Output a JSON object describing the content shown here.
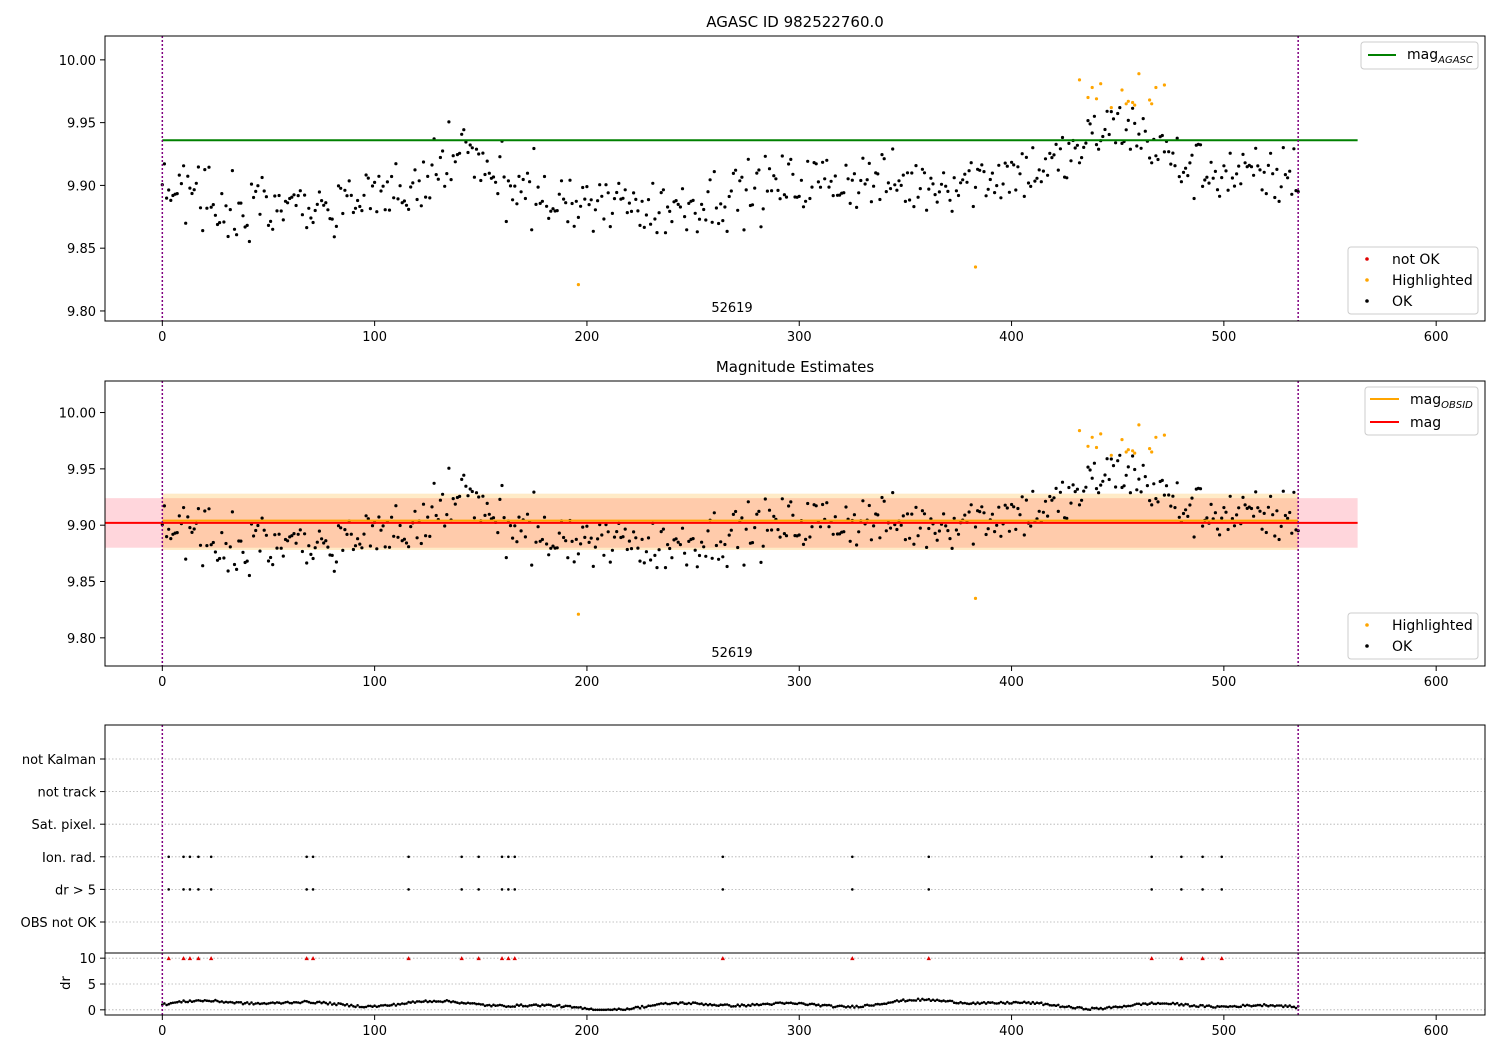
{
  "chart_data": [
    {
      "type": "scatter",
      "title": "AGASC ID 982522760.0",
      "xlim": [
        -27,
        623
      ],
      "ylim": [
        9.792,
        10.019
      ],
      "x_ticks": [
        0,
        100,
        200,
        300,
        400,
        500,
        600
      ],
      "y_ticks": [
        9.8,
        9.85,
        9.9,
        9.95,
        10.0
      ],
      "y_tick_labels": [
        "9.80",
        "9.85",
        "9.90",
        "9.95",
        "10.00"
      ],
      "obsid_label": {
        "text": "52619",
        "x": 267
      },
      "obs_boundaries": [
        0,
        535
      ],
      "lines": [
        {
          "name": "mag",
          "subscript": "AGASC",
          "y": 9.936,
          "x_range": [
            0,
            563
          ],
          "color": "#008000"
        }
      ],
      "highlighted_points": [
        [
          196,
          9.821
        ],
        [
          383,
          9.835
        ],
        [
          432,
          9.984
        ],
        [
          436,
          9.97
        ],
        [
          438,
          9.978
        ],
        [
          440,
          9.969
        ],
        [
          442,
          9.981
        ],
        [
          447,
          9.962
        ],
        [
          452,
          9.976
        ],
        [
          454,
          9.965
        ],
        [
          455,
          9.967
        ],
        [
          457,
          9.966
        ],
        [
          458,
          9.964
        ],
        [
          460,
          9.989
        ],
        [
          465,
          9.968
        ],
        [
          466,
          9.965
        ],
        [
          468,
          9.978
        ],
        [
          472,
          9.98
        ]
      ],
      "legends": [
        {
          "position": "top-right",
          "items": [
            {
              "label": "mag",
              "sub": "AGASC",
              "kind": "line",
              "color": "#008000"
            }
          ]
        },
        {
          "position": "bottom-right",
          "items": [
            {
              "label": "not OK",
              "kind": "dot",
              "color": "#e00000"
            },
            {
              "label": "Highlighted",
              "kind": "dot",
              "color": "#ffa500"
            },
            {
              "label": "OK",
              "kind": "dot",
              "color": "#000000"
            }
          ]
        }
      ]
    },
    {
      "type": "scatter",
      "title": "Magnitude Estimates",
      "xlim": [
        -27,
        623
      ],
      "ylim": [
        9.775,
        10.028
      ],
      "x_ticks": [
        0,
        100,
        200,
        300,
        400,
        500,
        600
      ],
      "y_ticks": [
        9.8,
        9.85,
        9.9,
        9.95,
        10.0
      ],
      "y_tick_labels": [
        "9.80",
        "9.85",
        "9.90",
        "9.95",
        "10.00"
      ],
      "obsid_label": {
        "text": "52619",
        "x": 267
      },
      "obs_boundaries": [
        0,
        535
      ],
      "lines": [
        {
          "name": "mag",
          "subscript": "OBSID",
          "y": 9.904,
          "x_range": [
            0,
            535
          ],
          "color": "#ffa500"
        },
        {
          "name": "mag",
          "y": 9.902,
          "x_range": [
            -27,
            563
          ],
          "color": "#ff0000"
        }
      ],
      "bands": [
        {
          "y_range": [
            9.88,
            9.924
          ],
          "x_range": [
            -27,
            563
          ],
          "color": "#ffd6dc"
        },
        {
          "y_range": [
            9.878,
            9.928
          ],
          "x_range": [
            0,
            535
          ],
          "color": "#ffa500",
          "opacity": 0.22
        }
      ],
      "highlighted_points": [
        [
          196,
          9.821
        ],
        [
          383,
          9.835
        ],
        [
          432,
          9.984
        ],
        [
          436,
          9.97
        ],
        [
          438,
          9.978
        ],
        [
          440,
          9.969
        ],
        [
          442,
          9.981
        ],
        [
          447,
          9.962
        ],
        [
          452,
          9.976
        ],
        [
          454,
          9.965
        ],
        [
          455,
          9.967
        ],
        [
          457,
          9.966
        ],
        [
          458,
          9.964
        ],
        [
          460,
          9.989
        ],
        [
          465,
          9.968
        ],
        [
          466,
          9.965
        ],
        [
          468,
          9.978
        ],
        [
          472,
          9.98
        ]
      ],
      "legends": [
        {
          "position": "top-right",
          "items": [
            {
              "label": "mag",
              "sub": "OBSID",
              "kind": "line",
              "color": "#ffa500"
            },
            {
              "label": "mag",
              "kind": "line",
              "color": "#ff0000"
            }
          ]
        },
        {
          "position": "bottom-right",
          "items": [
            {
              "label": "Highlighted",
              "kind": "dot",
              "color": "#ffa500"
            },
            {
              "label": "OK",
              "kind": "dot",
              "color": "#000000"
            }
          ]
        }
      ]
    },
    {
      "type": "scatter",
      "title": "",
      "xlim": [
        -27,
        623
      ],
      "x_ticks": [
        0,
        100,
        200,
        300,
        400,
        500,
        600
      ],
      "obs_boundaries": [
        0,
        535
      ],
      "flag_rows": [
        "not Kalman",
        "not track",
        "Sat. pixel.",
        "Ion. rad.",
        "dr > 5",
        "OBS not OK"
      ],
      "flag_points": {
        "Ion. rad.": [
          3,
          10,
          13,
          17,
          23,
          68,
          71,
          116,
          141,
          149,
          160,
          163,
          166,
          264,
          325,
          361,
          466,
          480,
          490,
          499
        ],
        "dr > 5": [
          3,
          10,
          13,
          17,
          23,
          68,
          71,
          116,
          141,
          149,
          160,
          163,
          166,
          264,
          325,
          361,
          466,
          480,
          490,
          499
        ]
      },
      "dr": {
        "ylim": [
          -1,
          11
        ],
        "y_ticks": [
          0,
          5,
          10
        ],
        "y_tick_labels": [
          "0",
          "5",
          "10"
        ],
        "ylabel": "dr",
        "clipped_points": [
          3,
          10,
          13,
          17,
          23,
          68,
          71,
          116,
          141,
          149,
          160,
          163,
          166,
          264,
          325,
          361,
          466,
          480,
          490,
          499
        ],
        "clip_color": "#e00000"
      }
    }
  ],
  "colors": {
    "ok": "#000000",
    "highlighted": "#ffa500",
    "not_ok": "#e00000",
    "obs_boundary": "#800080",
    "grid": "#b0b0b0"
  }
}
